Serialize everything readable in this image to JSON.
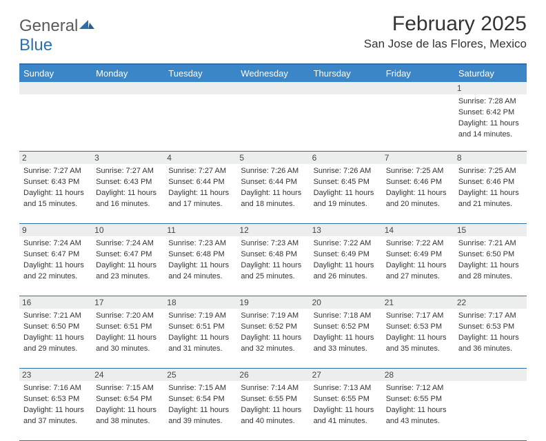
{
  "brand": {
    "name_a": "General",
    "name_b": "Blue"
  },
  "title": "February 2025",
  "location": "San Jose de las Flores, Mexico",
  "colors": {
    "header_bg": "#3b86c6",
    "border": "#2f6fa8",
    "daynum_bg": "#eceded",
    "text": "#333333",
    "logo_gray": "#5a5a5a",
    "logo_blue": "#2f6fa8"
  },
  "day_names": [
    "Sunday",
    "Monday",
    "Tuesday",
    "Wednesday",
    "Thursday",
    "Friday",
    "Saturday"
  ],
  "weeks": [
    [
      {
        "day": "",
        "lines": [
          "",
          "",
          "",
          ""
        ]
      },
      {
        "day": "",
        "lines": [
          "",
          "",
          "",
          ""
        ]
      },
      {
        "day": "",
        "lines": [
          "",
          "",
          "",
          ""
        ]
      },
      {
        "day": "",
        "lines": [
          "",
          "",
          "",
          ""
        ]
      },
      {
        "day": "",
        "lines": [
          "",
          "",
          "",
          ""
        ]
      },
      {
        "day": "",
        "lines": [
          "",
          "",
          "",
          ""
        ]
      },
      {
        "day": "1",
        "lines": [
          "Sunrise: 7:28 AM",
          "Sunset: 6:42 PM",
          "Daylight: 11 hours",
          "and 14 minutes."
        ]
      }
    ],
    [
      {
        "day": "2",
        "lines": [
          "Sunrise: 7:27 AM",
          "Sunset: 6:43 PM",
          "Daylight: 11 hours",
          "and 15 minutes."
        ]
      },
      {
        "day": "3",
        "lines": [
          "Sunrise: 7:27 AM",
          "Sunset: 6:43 PM",
          "Daylight: 11 hours",
          "and 16 minutes."
        ]
      },
      {
        "day": "4",
        "lines": [
          "Sunrise: 7:27 AM",
          "Sunset: 6:44 PM",
          "Daylight: 11 hours",
          "and 17 minutes."
        ]
      },
      {
        "day": "5",
        "lines": [
          "Sunrise: 7:26 AM",
          "Sunset: 6:44 PM",
          "Daylight: 11 hours",
          "and 18 minutes."
        ]
      },
      {
        "day": "6",
        "lines": [
          "Sunrise: 7:26 AM",
          "Sunset: 6:45 PM",
          "Daylight: 11 hours",
          "and 19 minutes."
        ]
      },
      {
        "day": "7",
        "lines": [
          "Sunrise: 7:25 AM",
          "Sunset: 6:46 PM",
          "Daylight: 11 hours",
          "and 20 minutes."
        ]
      },
      {
        "day": "8",
        "lines": [
          "Sunrise: 7:25 AM",
          "Sunset: 6:46 PM",
          "Daylight: 11 hours",
          "and 21 minutes."
        ]
      }
    ],
    [
      {
        "day": "9",
        "lines": [
          "Sunrise: 7:24 AM",
          "Sunset: 6:47 PM",
          "Daylight: 11 hours",
          "and 22 minutes."
        ]
      },
      {
        "day": "10",
        "lines": [
          "Sunrise: 7:24 AM",
          "Sunset: 6:47 PM",
          "Daylight: 11 hours",
          "and 23 minutes."
        ]
      },
      {
        "day": "11",
        "lines": [
          "Sunrise: 7:23 AM",
          "Sunset: 6:48 PM",
          "Daylight: 11 hours",
          "and 24 minutes."
        ]
      },
      {
        "day": "12",
        "lines": [
          "Sunrise: 7:23 AM",
          "Sunset: 6:48 PM",
          "Daylight: 11 hours",
          "and 25 minutes."
        ]
      },
      {
        "day": "13",
        "lines": [
          "Sunrise: 7:22 AM",
          "Sunset: 6:49 PM",
          "Daylight: 11 hours",
          "and 26 minutes."
        ]
      },
      {
        "day": "14",
        "lines": [
          "Sunrise: 7:22 AM",
          "Sunset: 6:49 PM",
          "Daylight: 11 hours",
          "and 27 minutes."
        ]
      },
      {
        "day": "15",
        "lines": [
          "Sunrise: 7:21 AM",
          "Sunset: 6:50 PM",
          "Daylight: 11 hours",
          "and 28 minutes."
        ]
      }
    ],
    [
      {
        "day": "16",
        "lines": [
          "Sunrise: 7:21 AM",
          "Sunset: 6:50 PM",
          "Daylight: 11 hours",
          "and 29 minutes."
        ]
      },
      {
        "day": "17",
        "lines": [
          "Sunrise: 7:20 AM",
          "Sunset: 6:51 PM",
          "Daylight: 11 hours",
          "and 30 minutes."
        ]
      },
      {
        "day": "18",
        "lines": [
          "Sunrise: 7:19 AM",
          "Sunset: 6:51 PM",
          "Daylight: 11 hours",
          "and 31 minutes."
        ]
      },
      {
        "day": "19",
        "lines": [
          "Sunrise: 7:19 AM",
          "Sunset: 6:52 PM",
          "Daylight: 11 hours",
          "and 32 minutes."
        ]
      },
      {
        "day": "20",
        "lines": [
          "Sunrise: 7:18 AM",
          "Sunset: 6:52 PM",
          "Daylight: 11 hours",
          "and 33 minutes."
        ]
      },
      {
        "day": "21",
        "lines": [
          "Sunrise: 7:17 AM",
          "Sunset: 6:53 PM",
          "Daylight: 11 hours",
          "and 35 minutes."
        ]
      },
      {
        "day": "22",
        "lines": [
          "Sunrise: 7:17 AM",
          "Sunset: 6:53 PM",
          "Daylight: 11 hours",
          "and 36 minutes."
        ]
      }
    ],
    [
      {
        "day": "23",
        "lines": [
          "Sunrise: 7:16 AM",
          "Sunset: 6:53 PM",
          "Daylight: 11 hours",
          "and 37 minutes."
        ]
      },
      {
        "day": "24",
        "lines": [
          "Sunrise: 7:15 AM",
          "Sunset: 6:54 PM",
          "Daylight: 11 hours",
          "and 38 minutes."
        ]
      },
      {
        "day": "25",
        "lines": [
          "Sunrise: 7:15 AM",
          "Sunset: 6:54 PM",
          "Daylight: 11 hours",
          "and 39 minutes."
        ]
      },
      {
        "day": "26",
        "lines": [
          "Sunrise: 7:14 AM",
          "Sunset: 6:55 PM",
          "Daylight: 11 hours",
          "and 40 minutes."
        ]
      },
      {
        "day": "27",
        "lines": [
          "Sunrise: 7:13 AM",
          "Sunset: 6:55 PM",
          "Daylight: 11 hours",
          "and 41 minutes."
        ]
      },
      {
        "day": "28",
        "lines": [
          "Sunrise: 7:12 AM",
          "Sunset: 6:55 PM",
          "Daylight: 11 hours",
          "and 43 minutes."
        ]
      },
      {
        "day": "",
        "lines": [
          "",
          "",
          "",
          ""
        ]
      }
    ]
  ]
}
